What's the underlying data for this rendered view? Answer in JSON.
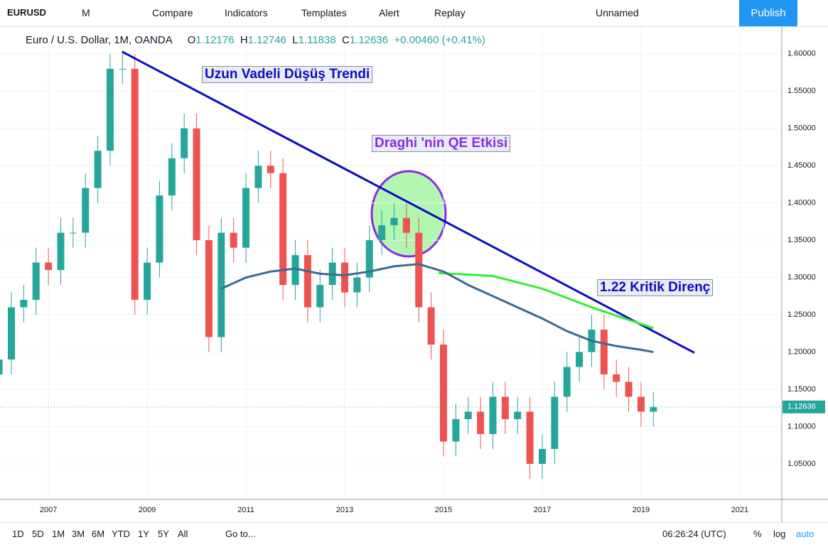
{
  "toolbar": {
    "symbol": "EURUSD",
    "interval": "M",
    "compare": "Compare",
    "indicators": "Indicators",
    "templates": "Templates",
    "alert": "Alert",
    "replay": "Replay",
    "layout": "Unnamed",
    "publish": "Publish"
  },
  "legend": {
    "name": "Euro / U.S. Dollar, 1M, OANDA",
    "o_label": "O",
    "o": 1.12176,
    "h_label": "H",
    "h": 1.12746,
    "l_label": "L",
    "l": 1.11838,
    "c_label": "C",
    "c": 1.12636,
    "change": "+0.00460 (+0.41%)"
  },
  "bottom_bar": {
    "ranges": [
      "1D",
      "5D",
      "1M",
      "3M",
      "6M",
      "YTD",
      "1Y",
      "5Y",
      "All"
    ],
    "goto": "Go to...",
    "time": "06:26:24 (UTC)",
    "percent": "%",
    "log": "log",
    "auto": "auto"
  },
  "chart_data": {
    "type": "candlestick",
    "annotations": [
      "Uzun Vadeli Düşüş Trendi",
      "Draghi 'nin QE Etkisi",
      "1.22 Kritik Direnç"
    ],
    "up_color": "#26a69a",
    "down_color": "#ef5350",
    "last_price": 1.12636,
    "xlim": [
      2006.02,
      2021.85
    ],
    "xticks": [
      2007,
      2009,
      2011,
      2013,
      2015,
      2017,
      2019,
      2021
    ],
    "ylim": [
      1.0023,
      1.637
    ],
    "yticks": [
      {
        "value": 1.05,
        "label": "1.05000"
      },
      {
        "value": 1.1,
        "label": "1.10000"
      },
      {
        "value": 1.15,
        "label": "1.15000"
      },
      {
        "value": 1.2,
        "label": "1.20000"
      },
      {
        "value": 1.25,
        "label": "1.25000"
      },
      {
        "value": 1.3,
        "label": "1.30000"
      },
      {
        "value": 1.35,
        "label": "1.35000"
      },
      {
        "value": 1.4,
        "label": "1.40000"
      },
      {
        "value": 1.45,
        "label": "1.45000"
      },
      {
        "value": 1.5,
        "label": "1.50000"
      },
      {
        "value": 1.55,
        "label": "1.55000"
      },
      {
        "value": 1.6,
        "label": "1.60000"
      }
    ],
    "x": [
      2006,
      2006.25,
      2006.5,
      2006.75,
      2007,
      2007.25,
      2007.5,
      2007.75,
      2008,
      2008.25,
      2008.5,
      2008.75,
      2009,
      2009.25,
      2009.5,
      2009.75,
      2010,
      2010.25,
      2010.5,
      2010.75,
      2011,
      2011.25,
      2011.5,
      2011.75,
      2012,
      2012.25,
      2012.5,
      2012.75,
      2013,
      2013.25,
      2013.5,
      2013.75,
      2014,
      2014.25,
      2014.5,
      2014.75,
      2015,
      2015.25,
      2015.5,
      2015.75,
      2016,
      2016.25,
      2016.5,
      2016.75,
      2017,
      2017.25,
      2017.5,
      2017.75,
      2018,
      2018.25,
      2018.5,
      2018.75,
      2019,
      2019.25
    ],
    "open": [
      1.17,
      1.19,
      1.26,
      1.27,
      1.32,
      1.31,
      1.36,
      1.36,
      1.42,
      1.47,
      1.58,
      1.58,
      1.27,
      1.32,
      1.41,
      1.46,
      1.5,
      1.35,
      1.22,
      1.36,
      1.34,
      1.42,
      1.45,
      1.44,
      1.29,
      1.33,
      1.26,
      1.29,
      1.32,
      1.28,
      1.3,
      1.35,
      1.37,
      1.38,
      1.36,
      1.26,
      1.21,
      1.08,
      1.11,
      1.12,
      1.09,
      1.14,
      1.11,
      1.12,
      1.05,
      1.07,
      1.14,
      1.18,
      1.2,
      1.23,
      1.17,
      1.16,
      1.14,
      1.12
    ],
    "high": [
      1.21,
      1.28,
      1.29,
      1.34,
      1.34,
      1.38,
      1.38,
      1.44,
      1.49,
      1.6,
      1.6,
      1.6,
      1.34,
      1.43,
      1.48,
      1.52,
      1.52,
      1.37,
      1.38,
      1.38,
      1.44,
      1.47,
      1.47,
      1.46,
      1.35,
      1.35,
      1.31,
      1.34,
      1.34,
      1.32,
      1.37,
      1.39,
      1.4,
      1.4,
      1.38,
      1.28,
      1.23,
      1.13,
      1.14,
      1.14,
      1.16,
      1.16,
      1.14,
      1.14,
      1.09,
      1.16,
      1.2,
      1.22,
      1.25,
      1.25,
      1.19,
      1.18,
      1.16,
      1.146
    ],
    "low": [
      1.15,
      1.17,
      1.24,
      1.25,
      1.29,
      1.29,
      1.34,
      1.34,
      1.4,
      1.45,
      1.56,
      1.25,
      1.25,
      1.3,
      1.39,
      1.44,
      1.33,
      1.2,
      1.2,
      1.32,
      1.32,
      1.4,
      1.42,
      1.27,
      1.27,
      1.24,
      1.24,
      1.27,
      1.26,
      1.26,
      1.28,
      1.33,
      1.35,
      1.34,
      1.24,
      1.19,
      1.06,
      1.06,
      1.09,
      1.07,
      1.07,
      1.09,
      1.09,
      1.03,
      1.03,
      1.05,
      1.12,
      1.16,
      1.18,
      1.15,
      1.14,
      1.12,
      1.1,
      1.1
    ],
    "close": [
      1.19,
      1.26,
      1.27,
      1.32,
      1.31,
      1.36,
      1.36,
      1.42,
      1.47,
      1.58,
      1.58,
      1.27,
      1.32,
      1.41,
      1.46,
      1.5,
      1.35,
      1.22,
      1.36,
      1.34,
      1.42,
      1.45,
      1.44,
      1.29,
      1.33,
      1.26,
      1.29,
      1.32,
      1.28,
      1.3,
      1.35,
      1.37,
      1.38,
      1.36,
      1.26,
      1.21,
      1.08,
      1.11,
      1.12,
      1.09,
      1.14,
      1.11,
      1.12,
      1.05,
      1.07,
      1.14,
      1.18,
      1.2,
      1.23,
      1.17,
      1.16,
      1.14,
      1.12,
      1.126
    ],
    "lines": [
      {
        "color": "#0d0dbf",
        "x": [
          2008.49,
          2020.08
        ],
        "values": [
          1.603,
          1.199
        ]
      },
      {
        "color": "#33ee33",
        "x": [
          2014.9,
          2016,
          2017,
          2018,
          2019.25
        ],
        "values": [
          1.306,
          1.302,
          1.285,
          1.26,
          1.232
        ]
      },
      {
        "color": "#3b6a90",
        "x": [
          2010.5,
          2011,
          2011.5,
          2012,
          2012.5,
          2013,
          2013.5,
          2014,
          2014.5,
          2015,
          2015.5,
          2016,
          2016.5,
          2017,
          2017.5,
          2018,
          2018.5,
          2019,
          2019.25
        ],
        "values": [
          1.285,
          1.3,
          1.308,
          1.312,
          1.305,
          1.303,
          1.308,
          1.315,
          1.318,
          1.308,
          1.29,
          1.275,
          1.26,
          1.245,
          1.228,
          1.215,
          1.208,
          1.203,
          1.2
        ]
      }
    ]
  }
}
